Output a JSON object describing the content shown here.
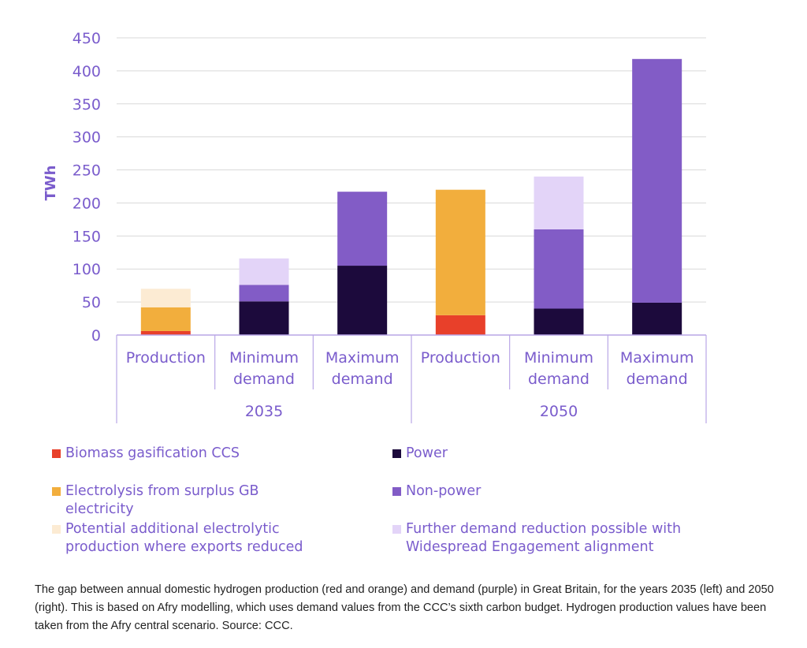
{
  "chart_data": {
    "type": "bar",
    "stacked": true,
    "ylabel": "TWh",
    "ylim": [
      0,
      450
    ],
    "yticks": [
      0,
      50,
      100,
      150,
      200,
      250,
      300,
      350,
      400,
      450
    ],
    "grid": true,
    "legend_position": "bottom",
    "groups": [
      {
        "label": "2035",
        "categories": [
          "Production",
          "Minimum demand",
          "Maximum demand"
        ]
      },
      {
        "label": "2050",
        "categories": [
          "Production",
          "Minimum demand",
          "Maximum demand"
        ]
      }
    ],
    "category_lines": [
      [
        "Production"
      ],
      [
        "Minimum",
        "demand"
      ],
      [
        "Maximum",
        "demand"
      ],
      [
        "Production"
      ],
      [
        "Minimum",
        "demand"
      ],
      [
        "Maximum",
        "demand"
      ]
    ],
    "series": [
      {
        "name": "Biomass gasification CCS",
        "color": "#e8402a",
        "values": [
          6,
          0,
          0,
          30,
          0,
          0
        ]
      },
      {
        "name": "Electrolysis from surplus GB electricity",
        "color": "#f2ae3d",
        "values": [
          36,
          0,
          0,
          190,
          0,
          0
        ]
      },
      {
        "name": "Potential additional electrolytic production where exports reduced",
        "color": "#fcebd3",
        "values": [
          28,
          0,
          0,
          0,
          0,
          0
        ]
      },
      {
        "name": "Power",
        "color": "#1c0a3c",
        "values": [
          0,
          51,
          105,
          0,
          40,
          49
        ]
      },
      {
        "name": "Non-power",
        "color": "#825cc6",
        "values": [
          0,
          25,
          112,
          0,
          120,
          369
        ]
      },
      {
        "name": "Further demand reduction possible with Widespread Engagement alignment",
        "color": "#e3d4f8",
        "values": [
          0,
          40,
          0,
          0,
          80,
          0
        ]
      }
    ],
    "legend_order": [
      0,
      3,
      1,
      4,
      2,
      5
    ]
  },
  "caption": "The gap between annual domestic hydrogen production (red and orange) and demand (purple) in Great Britain, for the years 2035 (left) and 2050 (right). This is based on Afry modelling, which uses demand values from the CCC’s sixth carbon budget. Hydrogen production values have been taken from the Afry central scenario. Source: CCC."
}
